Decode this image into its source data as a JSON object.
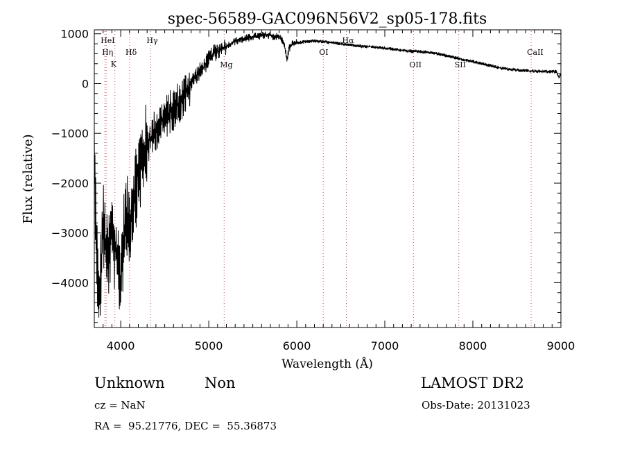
{
  "chart_data": {
    "type": "line",
    "title": "spec-56589-GAC096N56V2_sp05-178.fits",
    "xlabel": "Wavelength (Å)",
    "ylabel": "Flux (relative)",
    "xlim": [
      3700,
      9000
    ],
    "ylim": [
      -4900,
      1080
    ],
    "xticks": [
      4000,
      5000,
      6000,
      7000,
      8000,
      9000
    ],
    "yticks": [
      -4000,
      -3000,
      -2000,
      -1000,
      0,
      1000
    ],
    "grid": false,
    "line_color": "#000000",
    "marker_color": "#d04040",
    "spectral_lines": [
      {
        "label": "HeI",
        "x": 3820
      },
      {
        "label": "Hη",
        "x": 3835
      },
      {
        "label": "K",
        "x": 3934
      },
      {
        "label": "Hδ",
        "x": 4102
      },
      {
        "label": "Hγ",
        "x": 4341
      },
      {
        "label": "Mg",
        "x": 5175
      },
      {
        "label": "OI",
        "x": 6300
      },
      {
        "label": "Hα",
        "x": 6563
      },
      {
        "label": "OII",
        "x": 7325
      },
      {
        "label": "SII",
        "x": 7840
      },
      {
        "label": "CaII",
        "x": 8662
      }
    ],
    "series": [
      {
        "x": [
          3700,
          3750,
          3800,
          3850,
          3900,
          3950,
          4000,
          4050,
          4100,
          4150,
          4200,
          4250,
          4300,
          4350,
          4400,
          4450,
          4500,
          4550,
          4600,
          4650,
          4700,
          4750,
          4800,
          4850,
          4900,
          4950,
          5000,
          5050,
          5100,
          5150,
          5200,
          5250,
          5300,
          5350,
          5400,
          5450,
          5500,
          5550,
          5600,
          5650,
          5700,
          5750,
          5800,
          5850,
          5870,
          5890,
          5910,
          5950,
          6000,
          6050,
          6100,
          6150,
          6200,
          6250,
          6300,
          6350,
          6400,
          6450,
          6500,
          6550,
          6600,
          6650,
          6700,
          6750,
          6800,
          6850,
          6900,
          6950,
          7000,
          7100,
          7200,
          7300,
          7400,
          7500,
          7600,
          7700,
          7800,
          7900,
          8000,
          8100,
          8200,
          8300,
          8400,
          8500,
          8600,
          8700,
          8800,
          8900,
          8950,
          8980,
          9000
        ],
        "values": [
          -1500,
          -4600,
          -2800,
          -3600,
          -3000,
          -3500,
          -3900,
          -2700,
          -2800,
          -2200,
          -1800,
          -1500,
          -1200,
          -1100,
          -900,
          -800,
          -700,
          -600,
          -500,
          -400,
          -300,
          -150,
          0,
          150,
          250,
          350,
          500,
          600,
          650,
          700,
          750,
          800,
          850,
          880,
          900,
          920,
          940,
          950,
          960,
          970,
          960,
          950,
          930,
          850,
          650,
          500,
          700,
          800,
          820,
          830,
          840,
          850,
          860,
          850,
          840,
          830,
          820,
          810,
          800,
          790,
          780,
          770,
          760,
          750,
          740,
          740,
          730,
          720,
          710,
          690,
          670,
          650,
          640,
          630,
          600,
          560,
          520,
          480,
          440,
          400,
          360,
          320,
          290,
          270,
          260,
          250,
          245,
          240,
          240,
          120,
          200
        ]
      }
    ]
  },
  "info": {
    "class": "Unknown",
    "subclass": "Non",
    "survey": "LAMOST DR2",
    "cz": "cz = NaN",
    "obs_date": "Obs-Date: 20131023",
    "coords": "RA =  95.21776, DEC =  55.36873"
  }
}
